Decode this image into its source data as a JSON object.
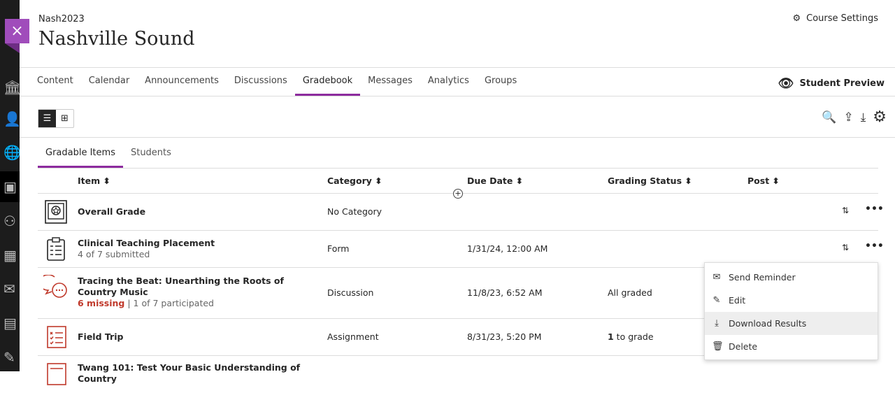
{
  "course": {
    "id": "Nash2023",
    "title": "Nashville Sound",
    "settings_label": "Course Settings",
    "preview_label": "Student Preview"
  },
  "close_icon": "×",
  "nav": {
    "tabs": [
      {
        "label": "Content"
      },
      {
        "label": "Calendar"
      },
      {
        "label": "Announcements"
      },
      {
        "label": "Discussions"
      },
      {
        "label": "Gradebook",
        "active": true
      },
      {
        "label": "Messages"
      },
      {
        "label": "Analytics"
      },
      {
        "label": "Groups"
      }
    ]
  },
  "subtabs": [
    {
      "label": "Gradable Items",
      "active": true
    },
    {
      "label": "Students"
    }
  ],
  "columns": {
    "item": "Item ⬍",
    "category": "Category ⬍",
    "due": "Due Date ⬍",
    "status": "Grading Status ⬍",
    "post": "Post ⬍"
  },
  "rows": [
    {
      "name": "Overall Grade",
      "sub": "",
      "missing": "",
      "category": "No Category",
      "due": "",
      "status": "",
      "status_count": ""
    },
    {
      "name": "Clinical Teaching Placement",
      "sub": "4 of 7 submitted",
      "missing": "",
      "category": "Form",
      "due": "1/31/24, 12:00 AM",
      "status": "",
      "status_count": ""
    },
    {
      "name": "Tracing the Beat: Unearthing the Roots of Country Music",
      "sub": " | 1 of 7 participated",
      "missing": "6 missing",
      "category": "Discussion",
      "due": "11/8/23, 6:52 AM",
      "status": "All graded",
      "status_count": ""
    },
    {
      "name": "Field Trip",
      "sub": "",
      "missing": "",
      "category": "Assignment",
      "due": "8/31/23, 5:20 PM",
      "status": " to grade",
      "status_count": "1"
    },
    {
      "name": "Twang 101: Test Your Basic Understanding of Country",
      "sub": "",
      "missing": "",
      "category": "",
      "due": "",
      "status": "",
      "status_count": ""
    }
  ],
  "menu": {
    "items": [
      {
        "label": "Send Reminder",
        "icon": "envelope"
      },
      {
        "label": "Edit",
        "icon": "pencil"
      },
      {
        "label": "Download Results",
        "icon": "download",
        "highlighted": true
      },
      {
        "label": "Delete",
        "icon": "trash"
      }
    ]
  },
  "colors": {
    "accent": "#8d2b9e",
    "close_bg": "#a04dbb",
    "missing": "#c0392b",
    "sidebar": "#1c1c1c",
    "icon_red": "#c0392b"
  }
}
